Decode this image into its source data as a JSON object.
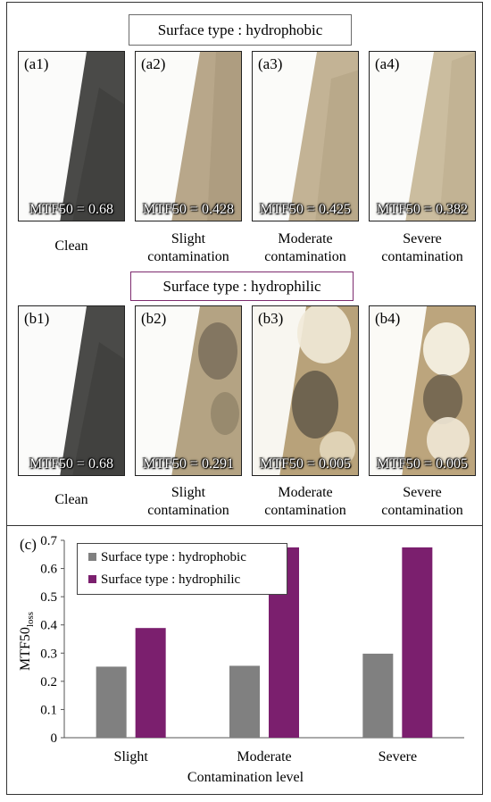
{
  "top_section": {
    "surface_type_label": "Surface type : hydrophobic",
    "panels": [
      {
        "label": "(a1)",
        "mtf": "MTF50 = 0.68",
        "caption": "Clean"
      },
      {
        "label": "(a2)",
        "mtf": "MTF50 = 0.428",
        "caption": "Slight contamination"
      },
      {
        "label": "(a3)",
        "mtf": "MTF50 = 0.425",
        "caption": "Moderate contamination"
      },
      {
        "label": "(a4)",
        "mtf": "MTF50 = 0.382",
        "caption": "Severe contamination"
      }
    ]
  },
  "bottom_section": {
    "surface_type_label": "Surface type : hydrophilic",
    "panels": [
      {
        "label": "(b1)",
        "mtf": "MTF50 = 0.68",
        "caption": "Clean"
      },
      {
        "label": "(b2)",
        "mtf": "MTF50 = 0.291",
        "caption": "Slight contamination"
      },
      {
        "label": "(b3)",
        "mtf": "MTF50 = 0.005",
        "caption": "Moderate contamination"
      },
      {
        "label": "(b4)",
        "mtf": "MTF50 = 0.005",
        "caption": "Severe contamination"
      }
    ]
  },
  "chart_panel_label": "(c)",
  "colors": {
    "hydrophobic": "#808080",
    "hydrophilic": "#7b1f6e",
    "hydrophobic_box_border": "#6b6b6b",
    "hydrophilic_box_border": "#7d2b6e"
  },
  "chart_data": {
    "type": "bar",
    "categories": [
      "Slight",
      "Moderate",
      "Severe"
    ],
    "series": [
      {
        "name": "Surface type : hydrophobic",
        "values": [
          0.252,
          0.255,
          0.298
        ]
      },
      {
        "name": "Surface type : hydrophilic",
        "values": [
          0.389,
          0.675,
          0.675
        ]
      }
    ],
    "xlabel": "Contamination level",
    "ylabel_main": "MTF50",
    "ylabel_sub": "loss",
    "ylim": [
      0,
      0.7
    ],
    "yticks": [
      "0",
      "0.1",
      "0.2",
      "0.3",
      "0.4",
      "0.5",
      "0.6",
      "0.7"
    ],
    "grid": false,
    "legend_position": "top-left"
  }
}
